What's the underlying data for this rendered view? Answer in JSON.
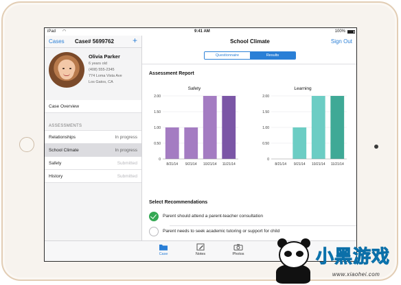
{
  "status_bar": {
    "carrier": "iPad",
    "time": "9:41 AM",
    "battery": "100%"
  },
  "sidebar": {
    "back_label": "Cases",
    "title": "Case# 5699762",
    "add_label": "+",
    "profile": {
      "name": "Olivia Parker",
      "age": "6 years old",
      "phone": "(408) 555-2345",
      "street": "774 Loma Vista Ave",
      "city": "Los Gatos, CA"
    },
    "overview_label": "Case Overview",
    "section_header": "ASSESSMENTS",
    "items": [
      {
        "label": "Relationships",
        "status": "In progress"
      },
      {
        "label": "School Climate",
        "status": "In progress"
      },
      {
        "label": "Safety",
        "status": "Submitted"
      },
      {
        "label": "History",
        "status": "Submitted"
      }
    ]
  },
  "main": {
    "title": "School Climate",
    "signout_label": "Sign Out",
    "tabs": [
      {
        "label": "Questionnaire"
      },
      {
        "label": "Results"
      }
    ],
    "report_title": "Assessment Report",
    "recommendations_title": "Select Recommendations",
    "recommendations": [
      {
        "text": "Parent should attend a parent-teacher consultation",
        "checked": true
      },
      {
        "text": "Parent needs to seek academic tutoring or support for child",
        "checked": false
      }
    ]
  },
  "tabbar": {
    "items": [
      {
        "label": "Case",
        "icon": "folder-icon"
      },
      {
        "label": "Notes",
        "icon": "pencil-icon"
      },
      {
        "label": "Photos",
        "icon": "camera-icon"
      }
    ]
  },
  "watermark": {
    "text": "小黑游戏",
    "url": "www.xiaohei.com"
  },
  "chart_data": [
    {
      "type": "bar",
      "title": "Safety",
      "categories": [
        "8/21/14",
        "9/21/14",
        "10/21/14",
        "11/21/14"
      ],
      "values": [
        1.0,
        1.0,
        2.0,
        2.0
      ],
      "yticks": [
        "0",
        "0.50",
        "1.00",
        "1.50",
        "2.00"
      ],
      "ylim": [
        0,
        2
      ],
      "colors": [
        "#a47cc2",
        "#a47cc2",
        "#a47cc2",
        "#7b56a6"
      ]
    },
    {
      "type": "bar",
      "title": "Learning",
      "categories": [
        "8/21/14",
        "9/21/14",
        "10/21/14",
        "11/21/14"
      ],
      "values": [
        0,
        1.0,
        2.0,
        2.0
      ],
      "yticks": [
        "0",
        "0.50",
        "1.00",
        "1.50",
        "2.00"
      ],
      "ylim": [
        0,
        2
      ],
      "colors": [
        "#6ccdc4",
        "#6ccdc4",
        "#6ccdc4",
        "#3fa996"
      ]
    }
  ]
}
